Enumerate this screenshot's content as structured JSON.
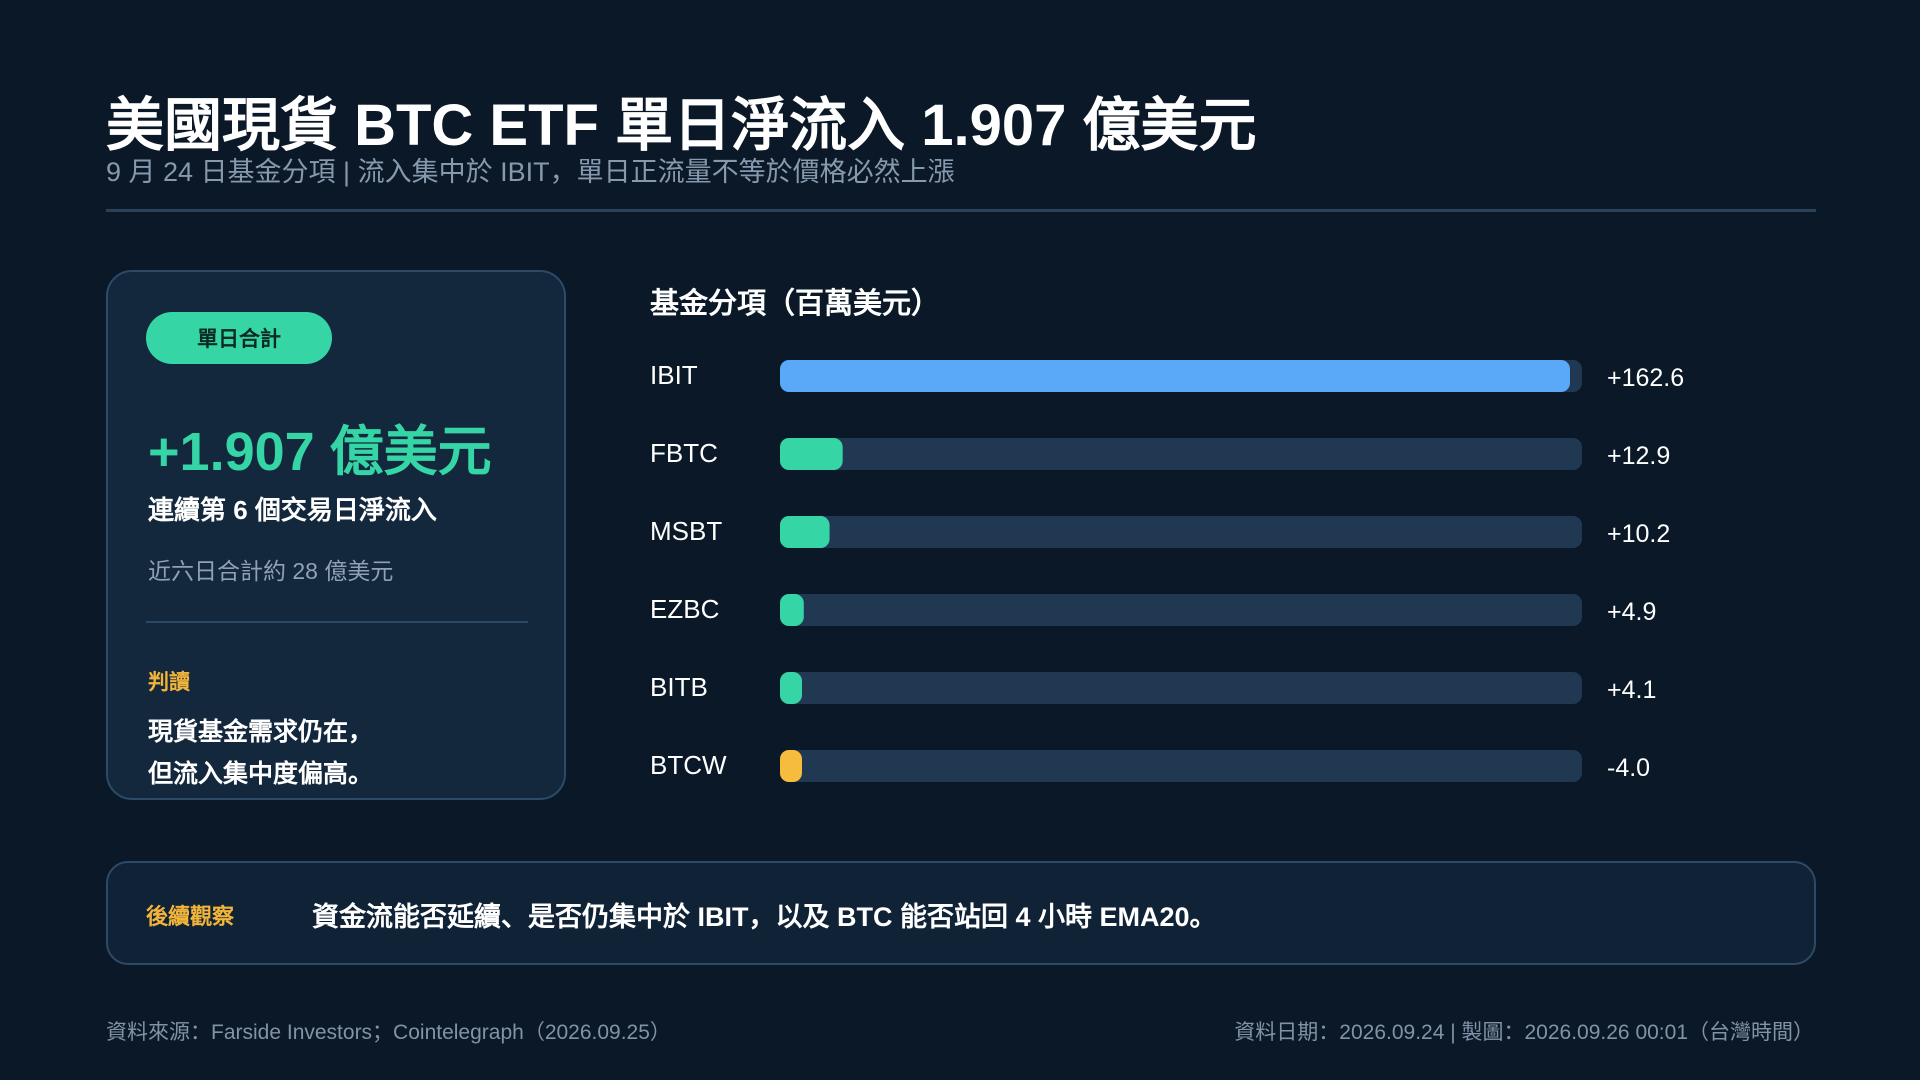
{
  "header": {
    "title": "美國現貨 BTC ETF 單日淨流入 1.907 億美元",
    "subtitle": "9 月 24 日基金分項 | 流入集中於 IBIT，單日正流量不等於價格必然上漲"
  },
  "summary_card": {
    "pill_label": "單日合計",
    "total": "+1.907 億美元",
    "streak": "連續第 6 個交易日淨流入",
    "six_day_total": "近六日合計約 28 億美元",
    "judgement_label": "判讀",
    "judgement_lines": [
      "現貨基金需求仍在，",
      "但流入集中度偏高。"
    ]
  },
  "chart_data": {
    "type": "bar",
    "orientation": "horizontal",
    "title": "基金分項（百萬美元）",
    "categories": [
      "IBIT",
      "FBTC",
      "MSBT",
      "EZBC",
      "BITB",
      "BTCW"
    ],
    "values": [
      162.6,
      12.9,
      10.2,
      4.9,
      4.1,
      -4.0
    ],
    "value_labels": [
      "+162.6",
      "+12.9",
      "+10.2",
      "+4.9",
      "+4.1",
      "-4.0"
    ],
    "bar_colors": [
      "#5aa8f8",
      "#35d5a6",
      "#35d5a6",
      "#35d5a6",
      "#35d5a6",
      "#f6bd3c"
    ],
    "track_color": "#203852",
    "xlim": [
      0,
      162.6
    ],
    "grid": false,
    "legend": "none"
  },
  "observation": {
    "label": "後續觀察",
    "text": "資金流能否延續、是否仍集中於 IBIT，以及 BTC 能否站回 4 小時 EMA20。"
  },
  "footer": {
    "source": "資料來源：Farside Investors；Cointelegraph（2026.09.25）",
    "meta": "資料日期：2026.09.24 | 製圖：2026.09.26 00:01（台灣時間）"
  },
  "colors": {
    "background": "#0a1827",
    "accent_green": "#35d5a6",
    "accent_blue": "#5aa8f8",
    "accent_amber": "#f2b53a"
  }
}
